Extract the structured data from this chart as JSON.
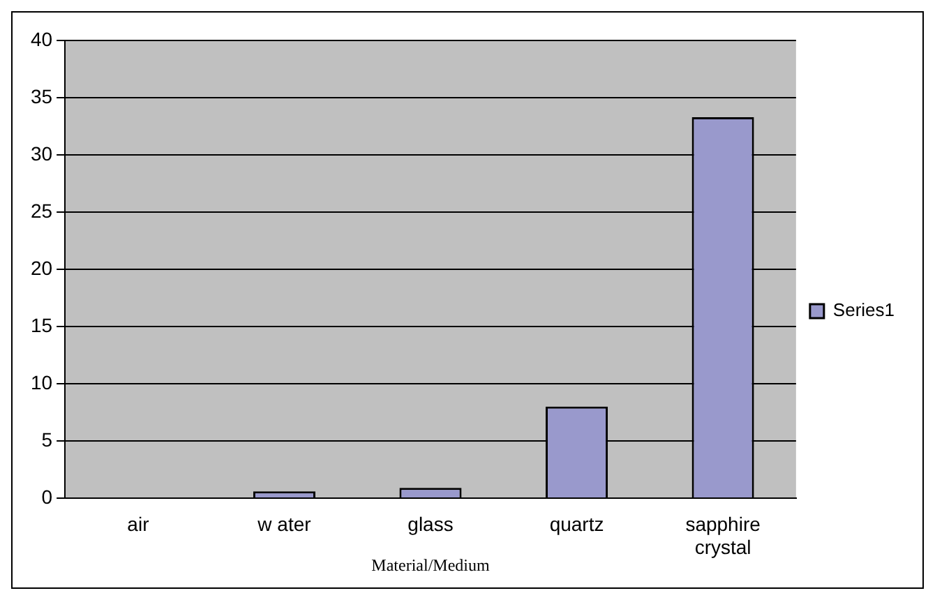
{
  "chart_data": {
    "type": "bar",
    "xlabel": "Material/Medium",
    "categories": [
      "air",
      "w ater",
      "glass",
      "quartz",
      "sapphire crystal"
    ],
    "series": [
      {
        "name": "Series1",
        "color": "#9999cc",
        "values": [
          0,
          0.6,
          0.9,
          8,
          33.3
        ]
      }
    ],
    "ylim": [
      0,
      40
    ],
    "yticks": [
      0,
      5,
      10,
      15,
      20,
      25,
      30,
      35,
      40
    ],
    "grid": "y",
    "legend": "right"
  }
}
